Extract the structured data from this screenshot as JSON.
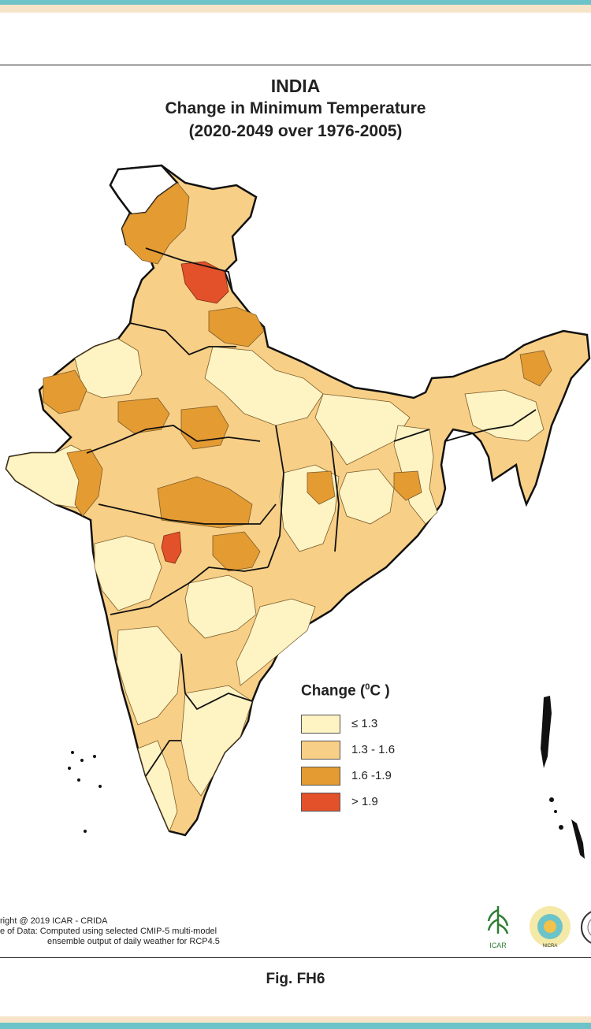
{
  "title": {
    "line1": "INDIA",
    "line2": "Change in Minimum Temperature",
    "line3": "(2020-2049 over 1976-2005)"
  },
  "legend": {
    "title": "Change (",
    "unit_sup": "0",
    "unit_rest": "C )",
    "items": [
      {
        "label": "≤ 1.3",
        "color": "#fdf3c3"
      },
      {
        "label": "1.3 - 1.6",
        "color": "#f8cf86"
      },
      {
        "label": "1.6 -1.9",
        "color": "#e49b32"
      },
      {
        "label": "> 1.9",
        "color": "#e2512a"
      }
    ]
  },
  "credits": {
    "line1": "right @ 2019 ICAR - CRIDA",
    "line2": "e of Data: Computed using selected CMIP-5 multi-model",
    "line3": "ensemble output of daily weather for RCP4.5"
  },
  "logos": {
    "icar_text": "ICAR",
    "nicra_text": "NICRA"
  },
  "figure_label": "Fig. FH6",
  "colors": {
    "low": "#fdf3c3",
    "mid": "#f8cf86",
    "high": "#e49b32",
    "very_high": "#e2512a",
    "teal": "#6cc4c8",
    "cream": "#f6e4c8"
  }
}
